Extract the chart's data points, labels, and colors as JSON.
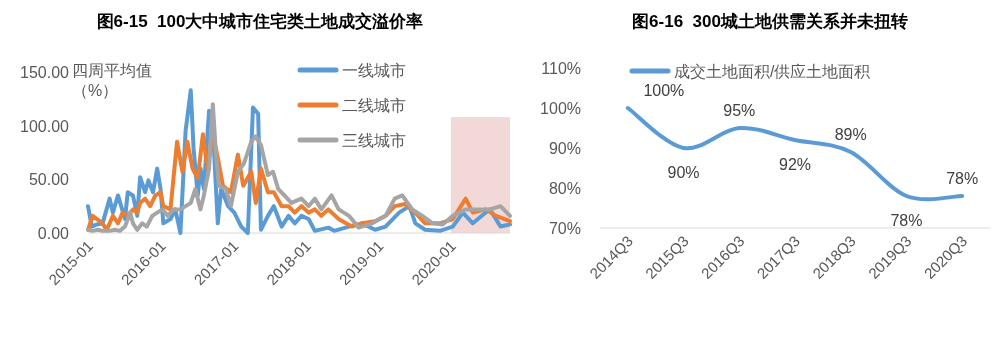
{
  "chart_data": [
    {
      "type": "line",
      "title": "图6-15  100大中城市住宅类土地成交溢价率",
      "ylabel": "四周平均值（%）",
      "legend": "top",
      "grid": false,
      "marker": "none",
      "line_style": "solid",
      "xlim": [
        "2015-01-01",
        "2020-10-24"
      ],
      "xticks": [
        "2015-01",
        "2016-01",
        "2017-01",
        "2018-01",
        "2019-01",
        "2020-01"
      ],
      "ylim": [
        0,
        150
      ],
      "yticks": [
        {
          "value": 0,
          "label": "0.00"
        },
        {
          "value": 50,
          "label": "50.00"
        },
        {
          "value": 100,
          "label": "100.00"
        },
        {
          "value": 150,
          "label": "150.00"
        }
      ],
      "bands": [
        {
          "axis": "x",
          "from": "2020-01-01",
          "to": "2020-10-24",
          "color": "#f2d4d4"
        }
      ],
      "series": [
        {
          "name": "一线城市",
          "color": "#5b9bd5",
          "x": [
            "2015-01-01",
            "2015-01-20",
            "2015-02-15",
            "2015-03-15",
            "2015-04-20",
            "2015-05-06",
            "2015-06-01",
            "2015-07-06",
            "2015-07-20",
            "2015-08-15",
            "2015-09-06",
            "2015-09-20",
            "2015-10-15",
            "2015-11-01",
            "2015-11-24",
            "2015-12-15",
            "2016-01-01",
            "2016-01-15",
            "2016-02-20",
            "2016-03-15",
            "2016-04-10",
            "2016-05-06",
            "2016-06-01",
            "2016-06-15",
            "2016-07-06",
            "2016-07-20",
            "2016-08-06",
            "2016-09-01",
            "2016-09-20",
            "2016-10-15",
            "2016-11-01",
            "2016-12-06",
            "2017-01-06",
            "2017-02-10",
            "2017-03-15",
            "2017-04-10",
            "2017-05-06",
            "2017-05-20",
            "2017-06-24",
            "2017-07-24",
            "2017-09-01",
            "2017-10-06",
            "2017-11-06",
            "2017-12-10",
            "2018-01-15",
            "2018-02-15",
            "2018-04-24",
            "2018-05-24",
            "2018-08-06",
            "2018-10-10",
            "2018-12-15",
            "2019-02-06",
            "2019-04-15",
            "2019-06-06",
            "2019-07-06",
            "2019-08-24",
            "2019-11-06",
            "2020-01-10",
            "2020-03-01",
            "2020-04-20",
            "2020-06-10",
            "2020-07-15",
            "2020-09-06",
            "2020-10-24"
          ],
          "values": [
            25,
            6,
            8,
            9,
            32,
            19,
            35,
            13,
            38,
            35,
            16,
            52,
            38,
            49,
            38,
            60,
            41,
            9,
            13,
            22,
            0,
            95,
            133,
            79,
            35,
            60,
            41,
            114,
            98,
            9,
            41,
            25,
            19,
            6,
            0,
            117,
            111,
            3,
            16,
            25,
            6,
            16,
            9,
            16,
            13,
            2,
            5,
            2,
            6,
            9,
            3,
            6,
            19,
            25,
            9,
            3,
            2,
            6,
            19,
            9,
            17,
            22,
            6,
            8
          ]
        },
        {
          "name": "二线城市",
          "color": "#ed7d31",
          "x": [
            "2015-01-01",
            "2015-01-24",
            "2015-02-15",
            "2015-03-10",
            "2015-04-06",
            "2015-05-06",
            "2015-06-01",
            "2015-06-24",
            "2015-07-20",
            "2015-08-15",
            "2015-09-06",
            "2015-09-20",
            "2015-10-15",
            "2015-11-10",
            "2015-12-06",
            "2016-01-01",
            "2016-01-15",
            "2016-02-20",
            "2016-03-06",
            "2016-03-24",
            "2016-04-20",
            "2016-05-15",
            "2016-06-10",
            "2016-07-06",
            "2016-08-01",
            "2016-08-24",
            "2016-09-20",
            "2016-10-15",
            "2016-11-10",
            "2016-12-20",
            "2017-01-24",
            "2017-02-20",
            "2017-04-01",
            "2017-04-24",
            "2017-05-20",
            "2017-06-24",
            "2017-07-24",
            "2017-09-01",
            "2017-10-06",
            "2017-11-06",
            "2017-12-10",
            "2018-01-15",
            "2018-02-15",
            "2018-03-20",
            "2018-04-24",
            "2018-06-15",
            "2018-08-20",
            "2018-10-10",
            "2018-12-15",
            "2019-02-06",
            "2019-03-24",
            "2019-05-15",
            "2019-07-06",
            "2019-08-24",
            "2019-11-06",
            "2020-01-10",
            "2020-03-15",
            "2020-04-20",
            "2020-06-24",
            "2020-08-15",
            "2020-10-24"
          ],
          "values": [
            3,
            16,
            13,
            10,
            3,
            16,
            9,
            19,
            16,
            22,
            19,
            28,
            32,
            25,
            35,
            38,
            25,
            22,
            51,
            85,
            57,
            85,
            60,
            51,
            92,
            60,
            92,
            70,
            44,
            38,
            73,
            44,
            57,
            28,
            60,
            38,
            38,
            25,
            25,
            19,
            25,
            19,
            22,
            16,
            22,
            13,
            6,
            9,
            11,
            16,
            25,
            27,
            19,
            9,
            9,
            13,
            32,
            19,
            22,
            16,
            11
          ]
        },
        {
          "name": "三线城市",
          "color": "#a5a5a5",
          "x": [
            "2015-01-01",
            "2015-01-24",
            "2015-02-20",
            "2015-03-15",
            "2015-04-20",
            "2015-05-15",
            "2015-06-10",
            "2015-07-06",
            "2015-08-01",
            "2015-08-15",
            "2015-09-06",
            "2015-10-01",
            "2015-10-24",
            "2015-11-20",
            "2015-12-15",
            "2016-01-10",
            "2016-02-06",
            "2016-03-06",
            "2016-04-10",
            "2016-05-06",
            "2016-06-01",
            "2016-06-24",
            "2016-07-20",
            "2016-08-06",
            "2016-09-01",
            "2016-09-20",
            "2016-10-06",
            "2016-10-20",
            "2016-11-24",
            "2016-12-20",
            "2017-01-24",
            "2017-02-24",
            "2017-04-01",
            "2017-04-24",
            "2017-05-20",
            "2017-06-24",
            "2017-07-20",
            "2017-08-15",
            "2017-09-15",
            "2017-10-20",
            "2017-12-10",
            "2018-01-15",
            "2018-02-15",
            "2018-03-20",
            "2018-05-10",
            "2018-06-15",
            "2018-08-06",
            "2018-09-24",
            "2018-12-01",
            "2019-02-06",
            "2019-03-24",
            "2019-05-01",
            "2019-06-20",
            "2019-08-10",
            "2019-10-01",
            "2019-11-20",
            "2020-01-10",
            "2020-03-15",
            "2020-05-24",
            "2020-07-15",
            "2020-09-06",
            "2020-10-24"
          ],
          "values": [
            3,
            2,
            3,
            2,
            2,
            3,
            2,
            6,
            19,
            9,
            3,
            9,
            6,
            16,
            19,
            22,
            16,
            22,
            22,
            25,
            28,
            41,
            22,
            35,
            60,
            120,
            73,
            44,
            41,
            25,
            57,
            65,
            85,
            90,
            82,
            54,
            57,
            41,
            35,
            28,
            32,
            25,
            32,
            22,
            35,
            22,
            16,
            5,
            9,
            16,
            32,
            35,
            22,
            16,
            9,
            8,
            16,
            22,
            22,
            22,
            25,
            16
          ]
        }
      ]
    },
    {
      "type": "line",
      "title": "图6-16  300城土地供需关系并未扭转",
      "legend": "top",
      "grid": false,
      "marker": "none",
      "line_style": "solid",
      "categories": [
        "2014Q3",
        "2015Q3",
        "2016Q3",
        "2017Q3",
        "2018Q3",
        "2019Q3",
        "2020Q3"
      ],
      "ylim": [
        70,
        110
      ],
      "yticks": [
        {
          "value": 70,
          "label": "70%"
        },
        {
          "value": 80,
          "label": "80%"
        },
        {
          "value": 90,
          "label": "90%"
        },
        {
          "value": 100,
          "label": "100%"
        },
        {
          "value": 110,
          "label": "110%"
        }
      ],
      "series": [
        {
          "name": "成交土地面积/供应土地面积",
          "color": "#5b9bd5",
          "values": [
            100,
            90,
            95,
            92,
            89,
            78,
            78
          ],
          "value_labels": [
            "100%",
            "90%",
            "95%",
            "92%",
            "89%",
            "78%",
            "78%"
          ]
        }
      ]
    }
  ]
}
